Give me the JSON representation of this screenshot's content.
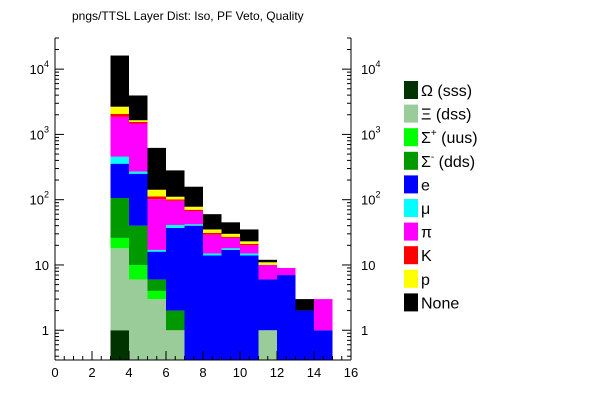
{
  "chart_data": {
    "type": "bar",
    "stacked": true,
    "title": "pngs/TTSL Layer Dist: Iso, PF Veto, Quality",
    "xlabel": "",
    "ylabel": "",
    "xlim": [
      0,
      16
    ],
    "ylim": [
      0.35,
      30000
    ],
    "y_scale": "log",
    "grid": false,
    "legend_position": "right",
    "bin_width": 1,
    "x_ticks": [
      "0",
      "2",
      "4",
      "6",
      "8",
      "10",
      "12",
      "14",
      "16"
    ],
    "y_ticks": [
      {
        "value": 1,
        "base": "1",
        "exp": ""
      },
      {
        "value": 10,
        "base": "10",
        "exp": ""
      },
      {
        "value": 100,
        "base": "10",
        "exp": "2"
      },
      {
        "value": 1000,
        "base": "10",
        "exp": "3"
      },
      {
        "value": 10000,
        "base": "10",
        "exp": "4"
      }
    ],
    "bins": [
      3,
      4,
      5,
      6,
      7,
      8,
      9,
      10,
      11,
      12,
      13,
      14
    ],
    "series": [
      {
        "name": "Ω (sss)",
        "sup": "",
        "color": "#003300",
        "values": [
          1,
          0,
          0,
          0,
          0,
          0,
          0,
          0,
          0,
          0,
          0,
          0
        ]
      },
      {
        "name": "Ξ (dss)",
        "sup": "",
        "color": "#99cc99",
        "values": [
          17,
          6,
          3,
          1,
          0,
          0,
          0,
          0,
          1,
          0,
          0,
          0
        ]
      },
      {
        "name": "Σ",
        "sup": "+",
        "suffix": " (uus)",
        "color": "#00ff00",
        "values": [
          8,
          4,
          1,
          0,
          0,
          0,
          0,
          0,
          0,
          0,
          0,
          0
        ]
      },
      {
        "name": "Σ",
        "sup": "-",
        "suffix": " (dds)",
        "color": "#009900",
        "values": [
          80,
          30,
          2,
          1,
          0,
          0,
          0,
          0,
          0,
          0,
          0,
          0
        ]
      },
      {
        "name": "e",
        "sup": "",
        "color": "#0000ff",
        "values": [
          250,
          210,
          10,
          35,
          40,
          14,
          17,
          14,
          5,
          7,
          2,
          1
        ]
      },
      {
        "name": "μ",
        "sup": "",
        "color": "#00ffff",
        "values": [
          100,
          20,
          1,
          4,
          2,
          1,
          1,
          1,
          0,
          0,
          0,
          0
        ]
      },
      {
        "name": "π",
        "sup": "",
        "color": "#ff00ff",
        "values": [
          1400,
          1200,
          85,
          55,
          25,
          14,
          8,
          5,
          4,
          2,
          0,
          2
        ]
      },
      {
        "name": "K",
        "sup": "",
        "color": "#ff0000",
        "values": [
          200,
          80,
          10,
          5,
          3,
          2,
          1,
          1,
          0,
          0,
          0,
          0
        ]
      },
      {
        "name": "p",
        "sup": "",
        "color": "#ffff00",
        "values": [
          600,
          100,
          30,
          10,
          8,
          4,
          3,
          2,
          1,
          0,
          0,
          0
        ]
      },
      {
        "name": "None",
        "sup": "",
        "color": "#000000",
        "values": [
          13500,
          2300,
          480,
          170,
          80,
          25,
          15,
          12,
          1,
          0,
          1,
          0
        ]
      }
    ]
  }
}
